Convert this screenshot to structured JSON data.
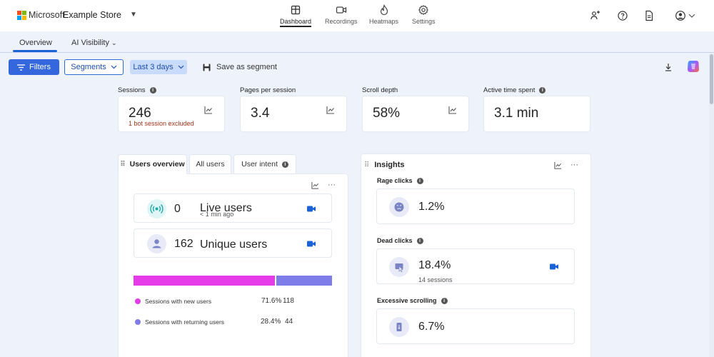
{
  "header": {
    "brand": "Microsoft",
    "store": "Example Store",
    "nav": [
      {
        "label": "Dashboard",
        "icon": "dashboard-icon",
        "active": true
      },
      {
        "label": "Recordings",
        "icon": "video-icon"
      },
      {
        "label": "Heatmaps",
        "icon": "flame-icon"
      },
      {
        "label": "Settings",
        "icon": "gear-icon"
      }
    ]
  },
  "tabs": {
    "overview": "Overview",
    "ai_visibility": "AI Visibility"
  },
  "toolbar": {
    "filters": "Filters",
    "segments": "Segments",
    "range": "Last 3 days",
    "save_segment": "Save as segment"
  },
  "metrics": [
    {
      "label": "Sessions",
      "value": "246",
      "sub": "1 bot session excluded"
    },
    {
      "label": "Pages per session",
      "value": "3.4"
    },
    {
      "label": "Scroll depth",
      "value": "58%"
    },
    {
      "label": "Active time spent",
      "value": "3.1 min"
    }
  ],
  "users": {
    "tabs": [
      "Users overview",
      "All users",
      "User intent"
    ],
    "live": {
      "count": "0",
      "label": "Live users",
      "sub": "< 1 min ago"
    },
    "unique": {
      "count": "162",
      "label": "Unique users"
    },
    "split": {
      "new_fraction": 0.716,
      "returning_fraction": 0.284
    },
    "legend": [
      {
        "label": "Sessions with new users",
        "pct": "71.6%",
        "count": "118",
        "color": "#e63be8"
      },
      {
        "label": "Sessions with returning users",
        "pct": "28.4%",
        "count": "44",
        "color": "#7d7ce8"
      }
    ]
  },
  "insights": {
    "title": "Insights",
    "items": [
      {
        "label": "Rage clicks",
        "value": "1.2%"
      },
      {
        "label": "Dead clicks",
        "value": "18.4%",
        "sub": "14 sessions"
      },
      {
        "label": "Excessive scrolling",
        "value": "6.7%"
      }
    ]
  },
  "colors": {
    "accent": "#3466dd",
    "new_users": "#e63be8",
    "returning_users": "#7d7ce8",
    "live_icon": "#1aa7a7",
    "camera": "#1b62d6"
  }
}
